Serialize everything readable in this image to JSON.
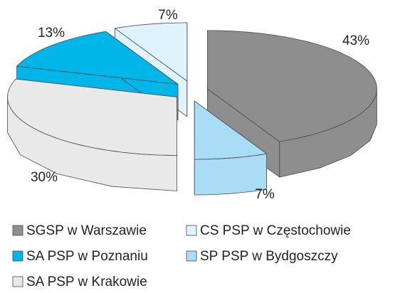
{
  "chart_data": {
    "type": "pie3d",
    "categories": [
      "SGSP w Warszawie",
      "SP PSP w Bydgoszczy",
      "SA PSP w Krakowie",
      "SA PSP w Poznaniu",
      "CS PSP w Częstochowie"
    ],
    "values": [
      43,
      7,
      30,
      13,
      7
    ],
    "value_labels": [
      "43%",
      "7%",
      "30%",
      "13%",
      "7%"
    ],
    "colors": [
      "#8e8e8e",
      "#a9ddf5",
      "#e9e9ea",
      "#00b5e8",
      "#def3fb"
    ]
  }
}
